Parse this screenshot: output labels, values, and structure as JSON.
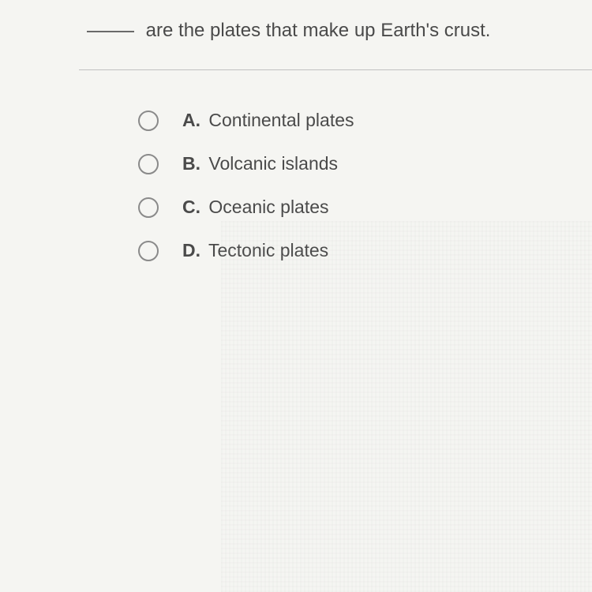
{
  "question": {
    "text_after_blank": "are the plates that make up Earth's crust.",
    "blank_width": 60
  },
  "options": [
    {
      "letter": "A.",
      "text": "Continental plates"
    },
    {
      "letter": "B.",
      "text": "Volcanic islands"
    },
    {
      "letter": "C.",
      "text": "Oceanic plates"
    },
    {
      "letter": "D.",
      "text": "Tectonic plates"
    }
  ],
  "styling": {
    "background_color": "#f5f5f2",
    "text_color": "#4a4a4a",
    "radio_border_color": "#8a8a8a",
    "divider_color": "#c0c0c0",
    "question_fontsize": 24,
    "option_fontsize": 23,
    "radio_size": 26
  }
}
